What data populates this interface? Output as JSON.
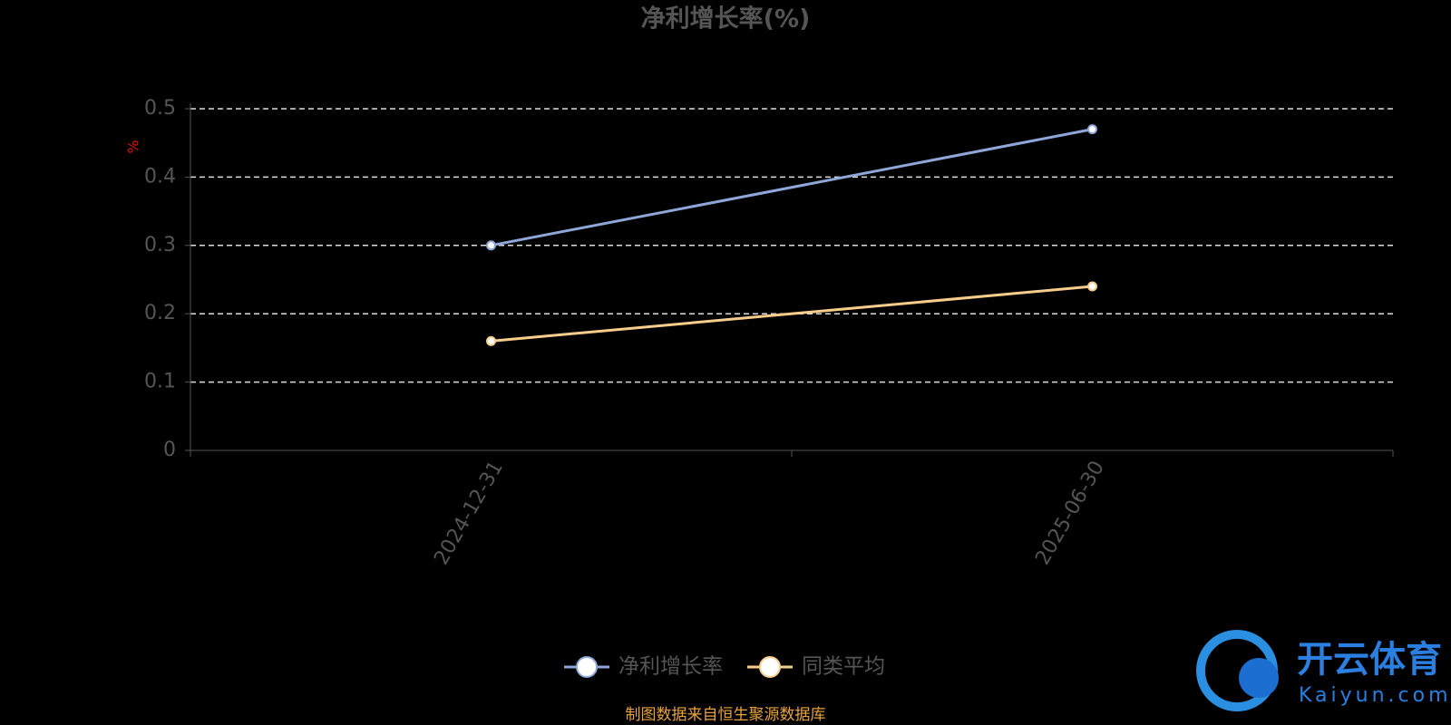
{
  "chart_data": {
    "type": "line",
    "title": "净利增长率(%)",
    "y_label": "%",
    "categories": [
      "2024-12-31",
      "2025-06-30"
    ],
    "series": [
      {
        "name": "净利增长率",
        "color": "#8ea6d8",
        "values": [
          0.3,
          0.47
        ]
      },
      {
        "name": "同类平均",
        "color": "#f7cd8c",
        "values": [
          0.16,
          0.24
        ]
      }
    ],
    "ylim": [
      0,
      0.5
    ],
    "yticks": [
      0,
      0.1,
      0.2,
      0.3,
      0.4,
      0.5
    ],
    "grid": true,
    "legend": "bottom",
    "source": "制图数据来自恒生聚源数据库"
  },
  "watermark": {
    "name": "开云体育",
    "domain": "Kaiyun.com"
  }
}
